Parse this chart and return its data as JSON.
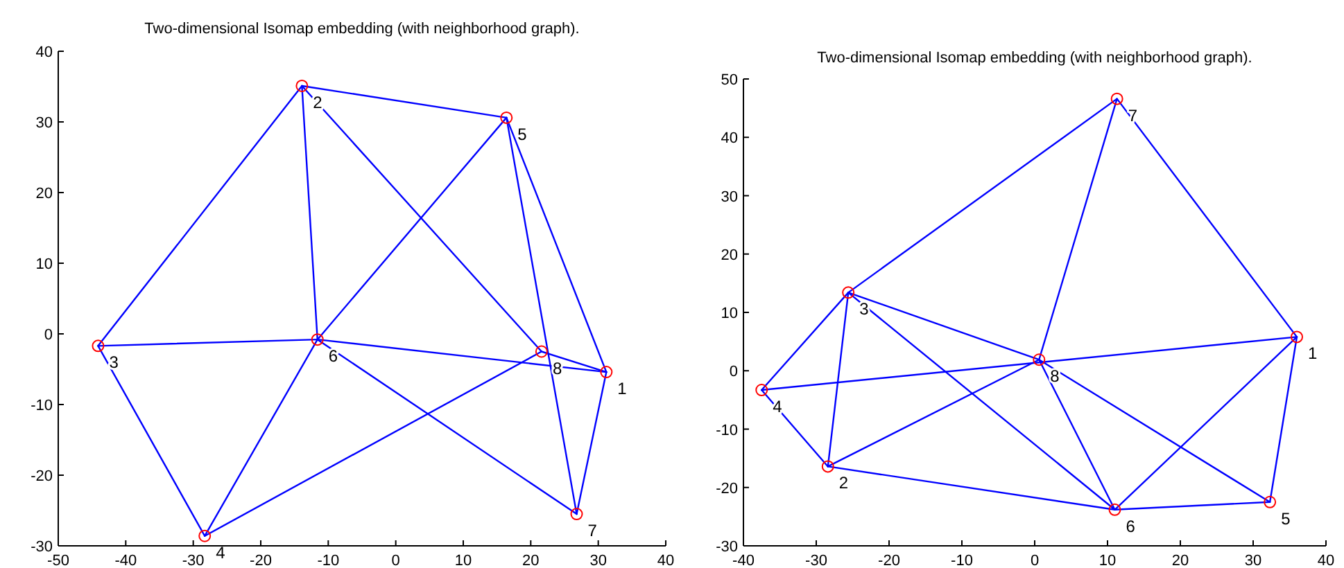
{
  "chart_data": [
    {
      "type": "scatter",
      "title": "Two-dimensional Isomap embedding (with neighborhood graph).",
      "xlim": [
        -50,
        40
      ],
      "ylim": [
        -30,
        40
      ],
      "xticks": [
        -50,
        -40,
        -30,
        -20,
        -10,
        0,
        10,
        20,
        30,
        40
      ],
      "yticks": [
        -30,
        -20,
        -10,
        0,
        10,
        20,
        30,
        40
      ],
      "marker": "circle",
      "series": [
        {
          "type": "line",
          "color": "#0000ff",
          "marker": "none",
          "x": [
            -13.9,
            16.4
          ],
          "values": [
            35.1,
            30.6
          ]
        },
        {
          "type": "line",
          "color": "#0000ff",
          "marker": "none",
          "x": [
            -13.9,
            -44.1
          ],
          "values": [
            35.1,
            -1.7
          ]
        },
        {
          "type": "line",
          "color": "#0000ff",
          "marker": "none",
          "x": [
            -13.9,
            -11.6
          ],
          "values": [
            35.1,
            -0.8
          ]
        },
        {
          "type": "line",
          "color": "#0000ff",
          "marker": "none",
          "x": [
            -13.9,
            21.6
          ],
          "values": [
            35.1,
            -2.5
          ]
        },
        {
          "type": "line",
          "color": "#0000ff",
          "marker": "none",
          "x": [
            16.4,
            -11.6
          ],
          "values": [
            30.6,
            -0.8
          ]
        },
        {
          "type": "line",
          "color": "#0000ff",
          "marker": "none",
          "x": [
            16.4,
            26.8
          ],
          "values": [
            30.6,
            -25.5
          ]
        },
        {
          "type": "line",
          "color": "#0000ff",
          "marker": "none",
          "x": [
            16.4,
            31.2
          ],
          "values": [
            30.6,
            -5.4
          ]
        },
        {
          "type": "line",
          "color": "#0000ff",
          "marker": "none",
          "x": [
            -44.1,
            -11.6
          ],
          "values": [
            -1.7,
            -0.8
          ]
        },
        {
          "type": "line",
          "color": "#0000ff",
          "marker": "none",
          "x": [
            -44.1,
            -28.3
          ],
          "values": [
            -1.7,
            -28.6
          ]
        },
        {
          "type": "line",
          "color": "#0000ff",
          "marker": "none",
          "x": [
            -11.6,
            31.2
          ],
          "values": [
            -0.8,
            -5.4
          ]
        },
        {
          "type": "line",
          "color": "#0000ff",
          "marker": "none",
          "x": [
            21.6,
            31.2
          ],
          "values": [
            -2.5,
            -5.4
          ]
        },
        {
          "type": "line",
          "color": "#0000ff",
          "marker": "none",
          "x": [
            -11.6,
            -28.3
          ],
          "values": [
            -0.8,
            -28.6
          ]
        },
        {
          "type": "line",
          "color": "#0000ff",
          "marker": "none",
          "x": [
            -11.6,
            26.8
          ],
          "values": [
            -0.8,
            -25.5
          ]
        },
        {
          "type": "line",
          "color": "#0000ff",
          "marker": "none",
          "x": [
            -28.3,
            21.6
          ],
          "values": [
            -28.6,
            -2.5
          ]
        },
        {
          "type": "line",
          "color": "#0000ff",
          "marker": "none",
          "x": [
            31.2,
            26.8
          ],
          "values": [
            -5.4,
            -25.5
          ]
        },
        {
          "color": "#ff0000",
          "x": [
            31.2,
            -13.9,
            -44.1,
            -28.3,
            16.4,
            -11.6,
            26.8,
            21.6
          ],
          "values": [
            -5.4,
            35.1,
            -1.7,
            -28.6,
            30.6,
            -0.8,
            -25.5,
            -2.5
          ]
        }
      ],
      "annotations": [
        {
          "text": "1",
          "x": 31.2,
          "y": -5.4
        },
        {
          "text": "2",
          "x": -13.9,
          "y": 35.1
        },
        {
          "text": "3",
          "x": -44.1,
          "y": -1.7
        },
        {
          "text": "4",
          "x": -28.3,
          "y": -28.6
        },
        {
          "text": "5",
          "x": 16.4,
          "y": 30.6
        },
        {
          "text": "6",
          "x": -11.6,
          "y": -0.8
        },
        {
          "text": "7",
          "x": 26.8,
          "y": -25.5
        },
        {
          "text": "8",
          "x": 21.6,
          "y": -2.5
        }
      ]
    },
    {
      "type": "scatter",
      "title": "Two-dimensional Isomap embedding (with neighborhood graph).",
      "xlim": [
        -40,
        40
      ],
      "ylim": [
        -30,
        50
      ],
      "xticks": [
        -40,
        -30,
        -20,
        -10,
        0,
        10,
        20,
        30,
        40
      ],
      "yticks": [
        -30,
        -20,
        -10,
        0,
        10,
        20,
        30,
        40,
        50
      ],
      "marker": "circle",
      "series": [
        {
          "type": "line",
          "color": "#0000ff",
          "marker": "none",
          "x": [
            -25.6,
            11.3
          ],
          "values": [
            13.4,
            46.6
          ]
        },
        {
          "type": "line",
          "color": "#0000ff",
          "marker": "none",
          "x": [
            11.3,
            36.0
          ],
          "values": [
            46.6,
            5.8
          ]
        },
        {
          "type": "line",
          "color": "#0000ff",
          "marker": "none",
          "x": [
            11.3,
            0.6
          ],
          "values": [
            46.6,
            1.9
          ]
        },
        {
          "type": "line",
          "color": "#0000ff",
          "marker": "none",
          "x": [
            -25.6,
            -37.5
          ],
          "values": [
            13.4,
            -3.3
          ]
        },
        {
          "type": "line",
          "color": "#0000ff",
          "marker": "none",
          "x": [
            -25.6,
            -28.4
          ],
          "values": [
            13.4,
            -16.4
          ]
        },
        {
          "type": "line",
          "color": "#0000ff",
          "marker": "none",
          "x": [
            -25.6,
            0.6
          ],
          "values": [
            13.4,
            1.9
          ]
        },
        {
          "type": "line",
          "color": "#0000ff",
          "marker": "none",
          "x": [
            -25.6,
            11.0
          ],
          "values": [
            13.4,
            -23.8
          ]
        },
        {
          "type": "line",
          "color": "#0000ff",
          "marker": "none",
          "x": [
            -37.5,
            36.0
          ],
          "values": [
            -3.3,
            5.8
          ]
        },
        {
          "type": "line",
          "color": "#0000ff",
          "marker": "none",
          "x": [
            -37.5,
            -28.4
          ],
          "values": [
            -3.3,
            -16.4
          ]
        },
        {
          "type": "line",
          "color": "#0000ff",
          "marker": "none",
          "x": [
            -28.4,
            0.6
          ],
          "values": [
            -16.4,
            1.9
          ]
        },
        {
          "type": "line",
          "color": "#0000ff",
          "marker": "none",
          "x": [
            -28.4,
            11.0
          ],
          "values": [
            -16.4,
            -23.8
          ]
        },
        {
          "type": "line",
          "color": "#0000ff",
          "marker": "none",
          "x": [
            0.6,
            11.0
          ],
          "values": [
            1.9,
            -23.8
          ]
        },
        {
          "type": "line",
          "color": "#0000ff",
          "marker": "none",
          "x": [
            0.6,
            32.3
          ],
          "values": [
            1.9,
            -22.5
          ]
        },
        {
          "type": "line",
          "color": "#0000ff",
          "marker": "none",
          "x": [
            11.0,
            36.0
          ],
          "values": [
            -23.8,
            5.8
          ]
        },
        {
          "type": "line",
          "color": "#0000ff",
          "marker": "none",
          "x": [
            11.0,
            32.3
          ],
          "values": [
            -23.8,
            -22.5
          ]
        },
        {
          "type": "line",
          "color": "#0000ff",
          "marker": "none",
          "x": [
            32.3,
            36.0
          ],
          "values": [
            -22.5,
            5.8
          ]
        },
        {
          "color": "#ff0000",
          "x": [
            36.0,
            -28.4,
            -25.6,
            -37.5,
            32.3,
            11.0,
            11.3,
            0.6
          ],
          "values": [
            5.8,
            -16.4,
            13.4,
            -3.3,
            -22.5,
            -23.8,
            46.6,
            1.9
          ]
        }
      ],
      "annotations": [
        {
          "text": "1",
          "x": 36.0,
          "y": 5.8
        },
        {
          "text": "2",
          "x": -28.4,
          "y": -16.4
        },
        {
          "text": "3",
          "x": -25.6,
          "y": 13.4
        },
        {
          "text": "4",
          "x": -37.5,
          "y": -3.3
        },
        {
          "text": "5",
          "x": 32.3,
          "y": -22.5
        },
        {
          "text": "6",
          "x": 11.0,
          "y": -23.8
        },
        {
          "text": "7",
          "x": 11.3,
          "y": 46.6
        },
        {
          "text": "8",
          "x": 0.6,
          "y": 1.9
        }
      ]
    }
  ]
}
